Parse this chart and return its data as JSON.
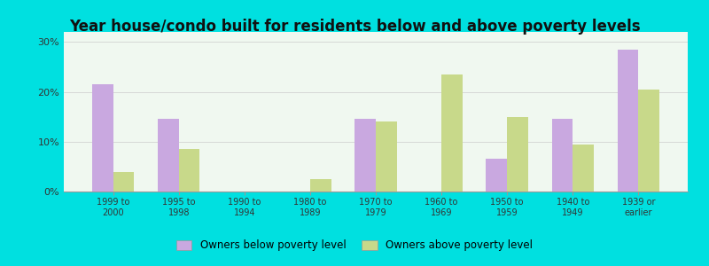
{
  "title": "Year house/condo built for residents below and above poverty levels",
  "categories": [
    "1999 to\n2000",
    "1995 to\n1998",
    "1990 to\n1994",
    "1980 to\n1989",
    "1970 to\n1979",
    "1960 to\n1969",
    "1950 to\n1959",
    "1940 to\n1949",
    "1939 or\nearlier"
  ],
  "below_poverty": [
    21.5,
    14.5,
    0,
    0,
    14.5,
    0,
    6.5,
    14.5,
    28.5
  ],
  "above_poverty": [
    4.0,
    8.5,
    0,
    2.5,
    14.0,
    23.5,
    15.0,
    9.5,
    20.5
  ],
  "below_color": "#c9a8e0",
  "above_color": "#c8d98a",
  "outer_bg": "#00e0e0",
  "plot_bg": "#f0f8f0",
  "title_fontsize": 12,
  "ylim": [
    0,
    32
  ],
  "yticks": [
    0,
    10,
    20,
    30
  ],
  "ytick_labels": [
    "0%",
    "10%",
    "20%",
    "30%"
  ],
  "legend_below": "Owners below poverty level",
  "legend_above": "Owners above poverty level",
  "bar_width": 0.32
}
